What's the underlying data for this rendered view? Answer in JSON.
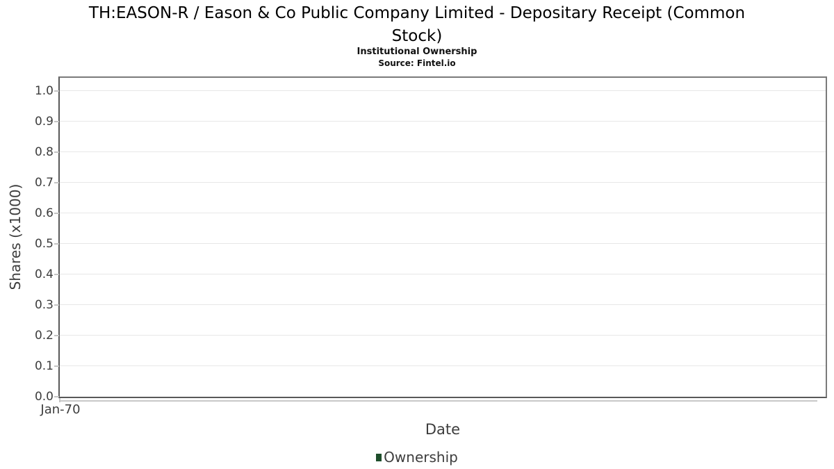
{
  "header": {
    "title_lines": [
      "TH:EASON-R / Eason & Co Public Company Limited - Depositary Receipt (Common",
      "Stock)"
    ],
    "subtitle": "Institutional Ownership",
    "source": "Source: Fintel.io"
  },
  "axes": {
    "y_axis_title": "Shares (x1000)",
    "x_axis_title": "Date",
    "y_ticks": [
      "0.0",
      "0.1",
      "0.2",
      "0.3",
      "0.4",
      "0.5",
      "0.6",
      "0.7",
      "0.8",
      "0.9",
      "1.0"
    ],
    "x_ticks": [
      "Jan-70"
    ]
  },
  "legend": {
    "items": [
      {
        "label": "Ownership",
        "marker_color": "#1e4e2b"
      }
    ]
  },
  "colors": {
    "background": "#ffffff",
    "title_text": "#000000",
    "axis_text": "#3d3d3d",
    "plot_border": "#6f6f6f",
    "gridline": "#e7e7e7",
    "tick_mark": "#c4c4c4",
    "series_ownership": "#1e4e2b"
  },
  "chart_data": {
    "type": "line",
    "title": "TH:EASON-R / Eason & Co Public Company Limited - Depositary Receipt (Common Stock)",
    "subtitle": "Institutional Ownership",
    "source": "Source: Fintel.io",
    "xlabel": "Date",
    "ylabel": "Shares (x1000)",
    "x_tick_labels": [
      "Jan-70"
    ],
    "y_ticks": [
      0.0,
      0.1,
      0.2,
      0.3,
      0.4,
      0.5,
      0.6,
      0.7,
      0.8,
      0.9,
      1.0
    ],
    "ylim": [
      0.0,
      1.05
    ],
    "grid": true,
    "legend_position": "bottom-center",
    "series": [
      {
        "name": "Ownership",
        "color": "#1e4e2b",
        "x": [],
        "values": []
      }
    ]
  }
}
